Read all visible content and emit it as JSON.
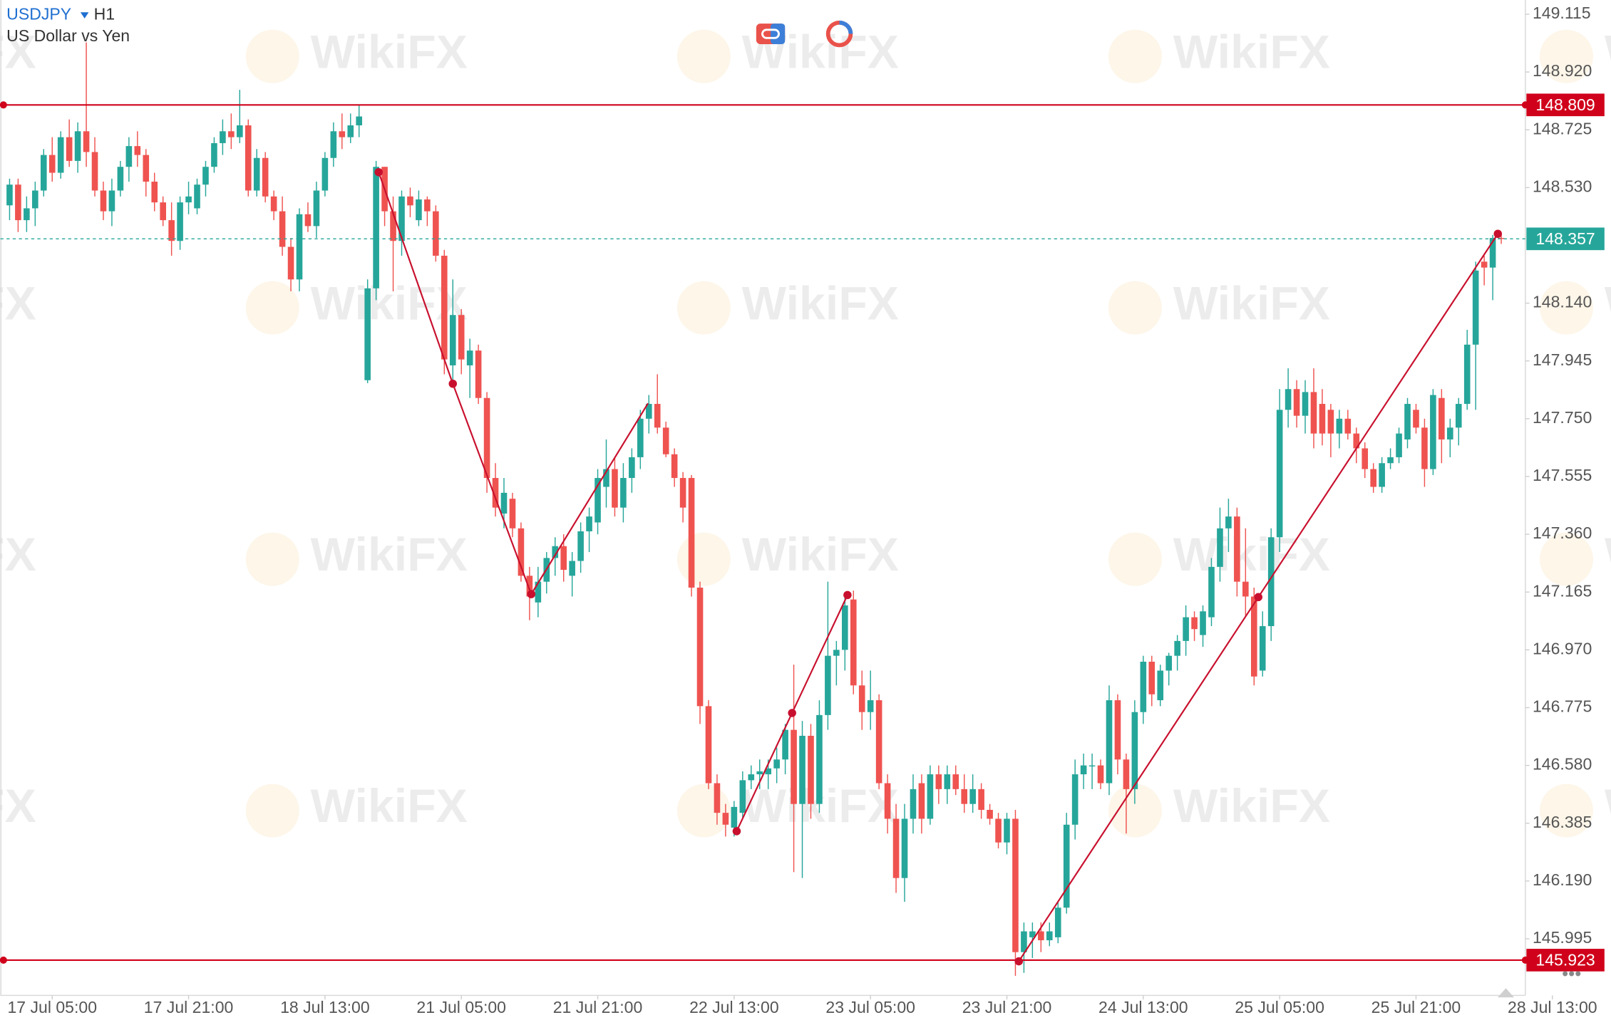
{
  "chart_data": {
    "type": "candlestick",
    "symbol": "USDJPY",
    "timeframe": "H1",
    "subtitle": "US Dollar vs Yen",
    "watermark": "WikiFX",
    "up_color": "#26a69a",
    "down_color": "#ef5350",
    "xlim": [
      -1.08,
      177.83
    ],
    "ylim": [
      145.804,
      149.163
    ],
    "xticks": [
      {
        "value": 5,
        "label": "17 Jul 05:00"
      },
      {
        "value": 21,
        "label": "17 Jul 21:00"
      },
      {
        "value": 37,
        "label": "18 Jul 13:00"
      },
      {
        "value": 53,
        "label": "21 Jul 05:00"
      },
      {
        "value": 69,
        "label": "21 Jul 21:00"
      },
      {
        "value": 85,
        "label": "22 Jul 13:00"
      },
      {
        "value": 101,
        "label": "23 Jul 05:00"
      },
      {
        "value": 117,
        "label": "23 Jul 21:00"
      },
      {
        "value": 133,
        "label": "24 Jul 13:00"
      },
      {
        "value": 149,
        "label": "25 Jul 05:00"
      },
      {
        "value": 165,
        "label": "25 Jul 21:00"
      },
      {
        "value": 181,
        "label": "28 Jul 13:00"
      }
    ],
    "yticks": [
      149.115,
      {
        "value": 148.92,
        "label": "148.920"
      },
      148.725,
      {
        "value": 148.53,
        "label": "148.530"
      },
      {
        "value": 148.14,
        "label": "148.140"
      },
      147.945,
      {
        "value": 147.75,
        "label": "147.750"
      },
      147.555,
      {
        "value": 147.36,
        "label": "147.360"
      },
      147.165,
      {
        "value": 146.97,
        "label": "146.970"
      },
      146.775,
      {
        "value": 146.58,
        "label": "146.580"
      },
      146.385,
      {
        "value": 146.19,
        "label": "146.190"
      },
      145.995
    ],
    "hlines": [
      {
        "value": 148.809,
        "color": "#d0021b"
      },
      {
        "value": 145.923,
        "color": "#d0021b"
      }
    ],
    "current_price": {
      "value": 148.357,
      "color": "#26a69a"
    },
    "trendline_color": "#c8102e",
    "trendlines": [
      {
        "markers": true,
        "points": [
          [
            43.3,
            148.582
          ],
          [
            52,
            147.868
          ],
          [
            61.2,
            147.158
          ]
        ]
      },
      {
        "markers": false,
        "points": [
          [
            61.2,
            147.158
          ],
          [
            74.9,
            147.802
          ]
        ]
      },
      {
        "markers": true,
        "points": [
          [
            85.3,
            146.358
          ],
          [
            91.8,
            146.757
          ],
          [
            98.3,
            147.155
          ]
        ]
      },
      {
        "markers": true,
        "points": [
          [
            118.4,
            145.919
          ],
          [
            146.5,
            147.148
          ],
          [
            174.6,
            148.374
          ]
        ]
      }
    ],
    "candles": [
      [
        148.47,
        148.56,
        148.42,
        148.54
      ],
      [
        148.54,
        148.56,
        148.38,
        148.42
      ],
      [
        148.42,
        148.5,
        148.38,
        148.46
      ],
      [
        148.46,
        148.55,
        148.4,
        148.52
      ],
      [
        148.52,
        148.66,
        148.5,
        148.64
      ],
      [
        148.64,
        148.7,
        148.55,
        148.58
      ],
      [
        148.58,
        148.72,
        148.56,
        148.7
      ],
      [
        148.7,
        148.76,
        148.6,
        148.62
      ],
      [
        148.62,
        148.75,
        148.58,
        148.72
      ],
      [
        148.72,
        149.02,
        148.6,
        148.65
      ],
      [
        148.65,
        148.7,
        148.5,
        148.52
      ],
      [
        148.52,
        148.55,
        148.42,
        148.45
      ],
      [
        148.45,
        148.56,
        148.4,
        148.52
      ],
      [
        148.52,
        148.62,
        148.5,
        148.6
      ],
      [
        148.6,
        148.7,
        148.55,
        148.67
      ],
      [
        148.67,
        148.72,
        148.6,
        148.64
      ],
      [
        148.64,
        148.66,
        148.5,
        148.55
      ],
      [
        148.55,
        148.58,
        148.45,
        148.48
      ],
      [
        148.48,
        148.5,
        148.4,
        148.42
      ],
      [
        148.42,
        148.48,
        148.3,
        148.35
      ],
      [
        148.35,
        148.5,
        148.32,
        148.48
      ],
      [
        148.48,
        148.55,
        148.44,
        148.5
      ],
      [
        148.46,
        148.56,
        148.44,
        148.54
      ],
      [
        148.54,
        148.62,
        148.5,
        148.6
      ],
      [
        148.6,
        148.7,
        148.58,
        148.68
      ],
      [
        148.68,
        148.76,
        148.64,
        148.72
      ],
      [
        148.72,
        148.78,
        148.66,
        148.7
      ],
      [
        148.7,
        148.86,
        148.68,
        148.74
      ],
      [
        148.74,
        148.76,
        148.5,
        148.52
      ],
      [
        148.52,
        148.66,
        148.5,
        148.63
      ],
      [
        148.63,
        148.65,
        148.48,
        148.5
      ],
      [
        148.5,
        148.52,
        148.42,
        148.45
      ],
      [
        148.45,
        148.5,
        148.3,
        148.33
      ],
      [
        148.33,
        148.36,
        148.18,
        148.22
      ],
      [
        148.22,
        148.46,
        148.18,
        148.44
      ],
      [
        148.44,
        148.48,
        148.38,
        148.4
      ],
      [
        148.4,
        148.55,
        148.36,
        148.52
      ],
      [
        148.52,
        148.65,
        148.5,
        148.63
      ],
      [
        148.63,
        148.75,
        148.6,
        148.72
      ],
      [
        148.72,
        148.78,
        148.66,
        148.7
      ],
      [
        148.7,
        148.78,
        148.68,
        148.74
      ],
      [
        148.74,
        148.81,
        148.7,
        148.77
      ],
      [
        147.88,
        148.22,
        147.87,
        148.19
      ],
      [
        148.19,
        148.62,
        148.15,
        148.6
      ],
      [
        148.6,
        148.6,
        148.4,
        148.45
      ],
      [
        148.45,
        148.5,
        148.18,
        148.35
      ],
      [
        148.35,
        148.52,
        148.3,
        148.5
      ],
      [
        148.5,
        148.53,
        148.43,
        148.47
      ],
      [
        148.42,
        148.52,
        148.4,
        148.49
      ],
      [
        148.49,
        148.5,
        148.4,
        148.45
      ],
      [
        148.45,
        148.47,
        148.28,
        148.3
      ],
      [
        148.3,
        148.32,
        147.9,
        147.95
      ],
      [
        147.93,
        148.22,
        147.88,
        148.1
      ],
      [
        148.1,
        148.12,
        147.9,
        147.95
      ],
      [
        147.93,
        148.02,
        147.82,
        147.98
      ],
      [
        147.98,
        148.0,
        147.8,
        147.82
      ],
      [
        147.82,
        147.84,
        147.5,
        147.55
      ],
      [
        147.55,
        147.6,
        147.42,
        147.45
      ],
      [
        147.43,
        147.55,
        147.38,
        147.5
      ],
      [
        147.48,
        147.5,
        147.35,
        147.38
      ],
      [
        147.38,
        147.4,
        147.2,
        147.22
      ],
      [
        147.22,
        147.25,
        147.07,
        147.15
      ],
      [
        147.13,
        147.25,
        147.08,
        147.2
      ],
      [
        147.2,
        147.3,
        147.16,
        147.28
      ],
      [
        147.28,
        147.35,
        147.22,
        147.32
      ],
      [
        147.32,
        147.36,
        147.2,
        147.24
      ],
      [
        147.22,
        147.3,
        147.15,
        147.27
      ],
      [
        147.27,
        147.4,
        147.23,
        147.37
      ],
      [
        147.37,
        147.45,
        147.3,
        147.42
      ],
      [
        147.4,
        147.58,
        147.36,
        147.55
      ],
      [
        147.52,
        147.68,
        147.45,
        147.58
      ],
      [
        147.58,
        147.62,
        147.42,
        147.45
      ],
      [
        147.45,
        147.6,
        147.4,
        147.55
      ],
      [
        147.55,
        147.65,
        147.5,
        147.62
      ],
      [
        147.62,
        147.78,
        147.58,
        147.75
      ],
      [
        147.75,
        147.83,
        147.7,
        147.8
      ],
      [
        147.8,
        147.9,
        147.7,
        147.72
      ],
      [
        147.72,
        147.74,
        147.62,
        147.63
      ],
      [
        147.63,
        147.65,
        147.52,
        147.55
      ],
      [
        147.55,
        147.57,
        147.4,
        147.45
      ],
      [
        147.55,
        147.56,
        147.15,
        147.18
      ],
      [
        147.18,
        147.2,
        146.72,
        146.78
      ],
      [
        146.78,
        146.8,
        146.5,
        146.52
      ],
      [
        146.52,
        146.55,
        146.38,
        146.42
      ],
      [
        146.42,
        146.45,
        146.34,
        146.38
      ],
      [
        146.37,
        146.46,
        146.34,
        146.44
      ],
      [
        146.42,
        146.56,
        146.4,
        146.53
      ],
      [
        146.53,
        146.58,
        146.5,
        146.55
      ],
      [
        146.55,
        146.6,
        146.5,
        146.56
      ],
      [
        146.55,
        146.6,
        146.5,
        146.57
      ],
      [
        146.57,
        146.64,
        146.52,
        146.6
      ],
      [
        146.6,
        146.72,
        146.55,
        146.7
      ],
      [
        146.7,
        146.92,
        146.22,
        146.45
      ],
      [
        146.45,
        146.73,
        146.2,
        146.68
      ],
      [
        146.68,
        146.72,
        146.4,
        146.45
      ],
      [
        146.45,
        146.8,
        146.42,
        146.75
      ],
      [
        146.75,
        147.2,
        146.7,
        146.95
      ],
      [
        146.95,
        147.0,
        146.85,
        146.97
      ],
      [
        146.97,
        147.15,
        146.9,
        147.12
      ],
      [
        147.14,
        147.17,
        146.82,
        146.85
      ],
      [
        146.85,
        146.9,
        146.7,
        146.76
      ],
      [
        146.76,
        146.9,
        146.7,
        146.8
      ],
      [
        146.8,
        146.82,
        146.5,
        146.52
      ],
      [
        146.52,
        146.55,
        146.35,
        146.4
      ],
      [
        146.4,
        146.45,
        146.15,
        146.2
      ],
      [
        146.2,
        146.45,
        146.12,
        146.4
      ],
      [
        146.4,
        146.55,
        146.35,
        146.5
      ],
      [
        146.52,
        146.55,
        146.35,
        146.4
      ],
      [
        146.4,
        146.58,
        146.38,
        146.55
      ],
      [
        146.55,
        146.58,
        146.45,
        146.5
      ],
      [
        146.5,
        146.58,
        146.45,
        146.55
      ],
      [
        146.55,
        146.58,
        146.48,
        146.5
      ],
      [
        146.5,
        146.55,
        146.42,
        146.45
      ],
      [
        146.45,
        146.55,
        146.42,
        146.5
      ],
      [
        146.5,
        146.52,
        146.4,
        146.43
      ],
      [
        146.43,
        146.45,
        146.38,
        146.4
      ],
      [
        146.4,
        146.42,
        146.3,
        146.32
      ],
      [
        146.32,
        146.42,
        146.28,
        146.4
      ],
      [
        146.4,
        146.43,
        145.87,
        145.95
      ],
      [
        145.95,
        146.05,
        145.88,
        146.02
      ],
      [
        146.0,
        146.05,
        145.93,
        146.02
      ],
      [
        146.02,
        146.05,
        145.95,
        145.99
      ],
      [
        145.99,
        146.05,
        145.97,
        146.02
      ],
      [
        146.0,
        146.12,
        145.98,
        146.1
      ],
      [
        146.1,
        146.42,
        146.08,
        146.38
      ],
      [
        146.38,
        146.6,
        146.33,
        146.55
      ],
      [
        146.55,
        146.62,
        146.5,
        146.58
      ],
      [
        146.58,
        146.62,
        146.5,
        146.58
      ],
      [
        146.58,
        146.6,
        146.5,
        146.52
      ],
      [
        146.52,
        146.85,
        146.48,
        146.8
      ],
      [
        146.8,
        146.82,
        146.55,
        146.6
      ],
      [
        146.6,
        146.62,
        146.35,
        146.5
      ],
      [
        146.5,
        146.8,
        146.45,
        146.76
      ],
      [
        146.76,
        146.95,
        146.72,
        146.93
      ],
      [
        146.93,
        146.95,
        146.78,
        146.82
      ],
      [
        146.8,
        146.92,
        146.78,
        146.9
      ],
      [
        146.9,
        146.96,
        146.85,
        146.95
      ],
      [
        146.95,
        147.02,
        146.9,
        147.0
      ],
      [
        147.0,
        147.12,
        146.95,
        147.08
      ],
      [
        147.08,
        147.1,
        147.0,
        147.04
      ],
      [
        147.02,
        147.12,
        146.98,
        147.1
      ],
      [
        147.08,
        147.28,
        147.05,
        147.25
      ],
      [
        147.25,
        147.45,
        147.2,
        147.38
      ],
      [
        147.38,
        147.48,
        147.3,
        147.42
      ],
      [
        147.42,
        147.45,
        147.15,
        147.2
      ],
      [
        147.2,
        147.38,
        147.08,
        147.15
      ],
      [
        147.15,
        147.18,
        146.85,
        146.88
      ],
      [
        146.9,
        147.1,
        146.88,
        147.05
      ],
      [
        147.05,
        147.38,
        147.0,
        147.35
      ],
      [
        147.35,
        147.85,
        147.3,
        147.78
      ],
      [
        147.78,
        147.92,
        147.72,
        147.85
      ],
      [
        147.85,
        147.88,
        147.72,
        147.76
      ],
      [
        147.76,
        147.88,
        147.7,
        147.84
      ],
      [
        147.84,
        147.92,
        147.65,
        147.7
      ],
      [
        147.8,
        147.85,
        147.66,
        147.7
      ],
      [
        147.78,
        147.8,
        147.62,
        147.7
      ],
      [
        147.7,
        147.78,
        147.65,
        147.75
      ],
      [
        147.75,
        147.78,
        147.68,
        147.7
      ],
      [
        147.7,
        147.72,
        147.6,
        147.65
      ],
      [
        147.65,
        147.67,
        147.55,
        147.58
      ],
      [
        147.58,
        147.6,
        147.5,
        147.52
      ],
      [
        147.52,
        147.62,
        147.5,
        147.6
      ],
      [
        147.6,
        147.65,
        147.58,
        147.62
      ],
      [
        147.62,
        147.72,
        147.6,
        147.7
      ],
      [
        147.68,
        147.82,
        147.65,
        147.8
      ],
      [
        147.78,
        147.8,
        147.7,
        147.72
      ],
      [
        147.72,
        147.75,
        147.52,
        147.58
      ],
      [
        147.58,
        147.85,
        147.56,
        147.83
      ],
      [
        147.82,
        147.85,
        147.6,
        147.68
      ],
      [
        147.68,
        147.75,
        147.62,
        147.72
      ],
      [
        147.72,
        147.82,
        147.66,
        147.8
      ],
      [
        147.8,
        148.05,
        147.78,
        148.0
      ],
      [
        148.0,
        148.28,
        147.78,
        148.25
      ],
      [
        148.28,
        148.3,
        148.2,
        148.26
      ],
      [
        148.26,
        148.37,
        148.15,
        148.36
      ],
      [
        148.36,
        148.37,
        148.34,
        148.357
      ]
    ]
  }
}
